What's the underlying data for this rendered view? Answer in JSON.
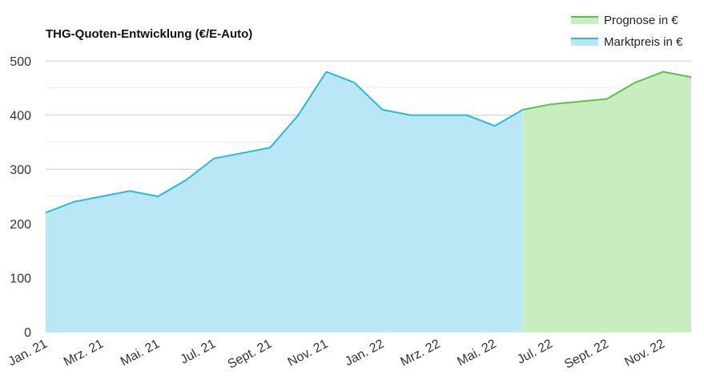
{
  "chart_data": {
    "type": "area",
    "title": "THG-Quoten-Entwicklung (€/E-Auto)",
    "xlabel": "",
    "ylabel": "",
    "ylim": [
      0,
      500
    ],
    "yticks": [
      0,
      100,
      200,
      300,
      400,
      500
    ],
    "grid": true,
    "legend_position": "top-right",
    "months": [
      "Jan. 21",
      "Feb. 21",
      "Mrz. 21",
      "Apr. 21",
      "Mai. 21",
      "Jun. 21",
      "Jul. 21",
      "Aug. 21",
      "Sept. 21",
      "Okt. 21",
      "Nov. 21",
      "Dez. 21",
      "Jan. 22",
      "Feb. 22",
      "Mrz. 22",
      "Apr. 22",
      "Mai. 22",
      "Jun. 22",
      "Jul. 22",
      "Aug. 22",
      "Sept. 22",
      "Okt. 22",
      "Nov. 22",
      "Dez. 22"
    ],
    "xtick_labels": [
      "Jan. 21",
      "Mrz. 21",
      "Mai. 21",
      "Jul. 21",
      "Sept. 21",
      "Nov. 21",
      "Jan. 22",
      "Mrz. 22",
      "Mai. 22",
      "Jul. 22",
      "Sept. 22",
      "Nov. 22"
    ],
    "series": [
      {
        "name": "Prognose in €",
        "line_color": "#5cc04a",
        "fill_color": "#c8edc1",
        "x": [
          "Jun. 22",
          "Jul. 22",
          "Aug. 22",
          "Sept. 22",
          "Okt. 22",
          "Nov. 22",
          "Dez. 22"
        ],
        "values": [
          410,
          420,
          425,
          430,
          460,
          480,
          470
        ]
      },
      {
        "name": "Marktpreis in €",
        "line_color": "#2bb8dc",
        "fill_color": "#b9e7f6",
        "x": [
          "Jan. 21",
          "Feb. 21",
          "Mrz. 21",
          "Apr. 21",
          "Mai. 21",
          "Jun. 21",
          "Jul. 21",
          "Aug. 21",
          "Sept. 21",
          "Okt. 21",
          "Nov. 21",
          "Dez. 21",
          "Jan. 22",
          "Feb. 22",
          "Mrz. 22",
          "Apr. 22",
          "Mai. 22",
          "Jun. 22"
        ],
        "values": [
          220,
          240,
          250,
          260,
          250,
          280,
          320,
          330,
          340,
          400,
          480,
          460,
          410,
          400,
          400,
          400,
          380,
          410
        ]
      }
    ]
  }
}
